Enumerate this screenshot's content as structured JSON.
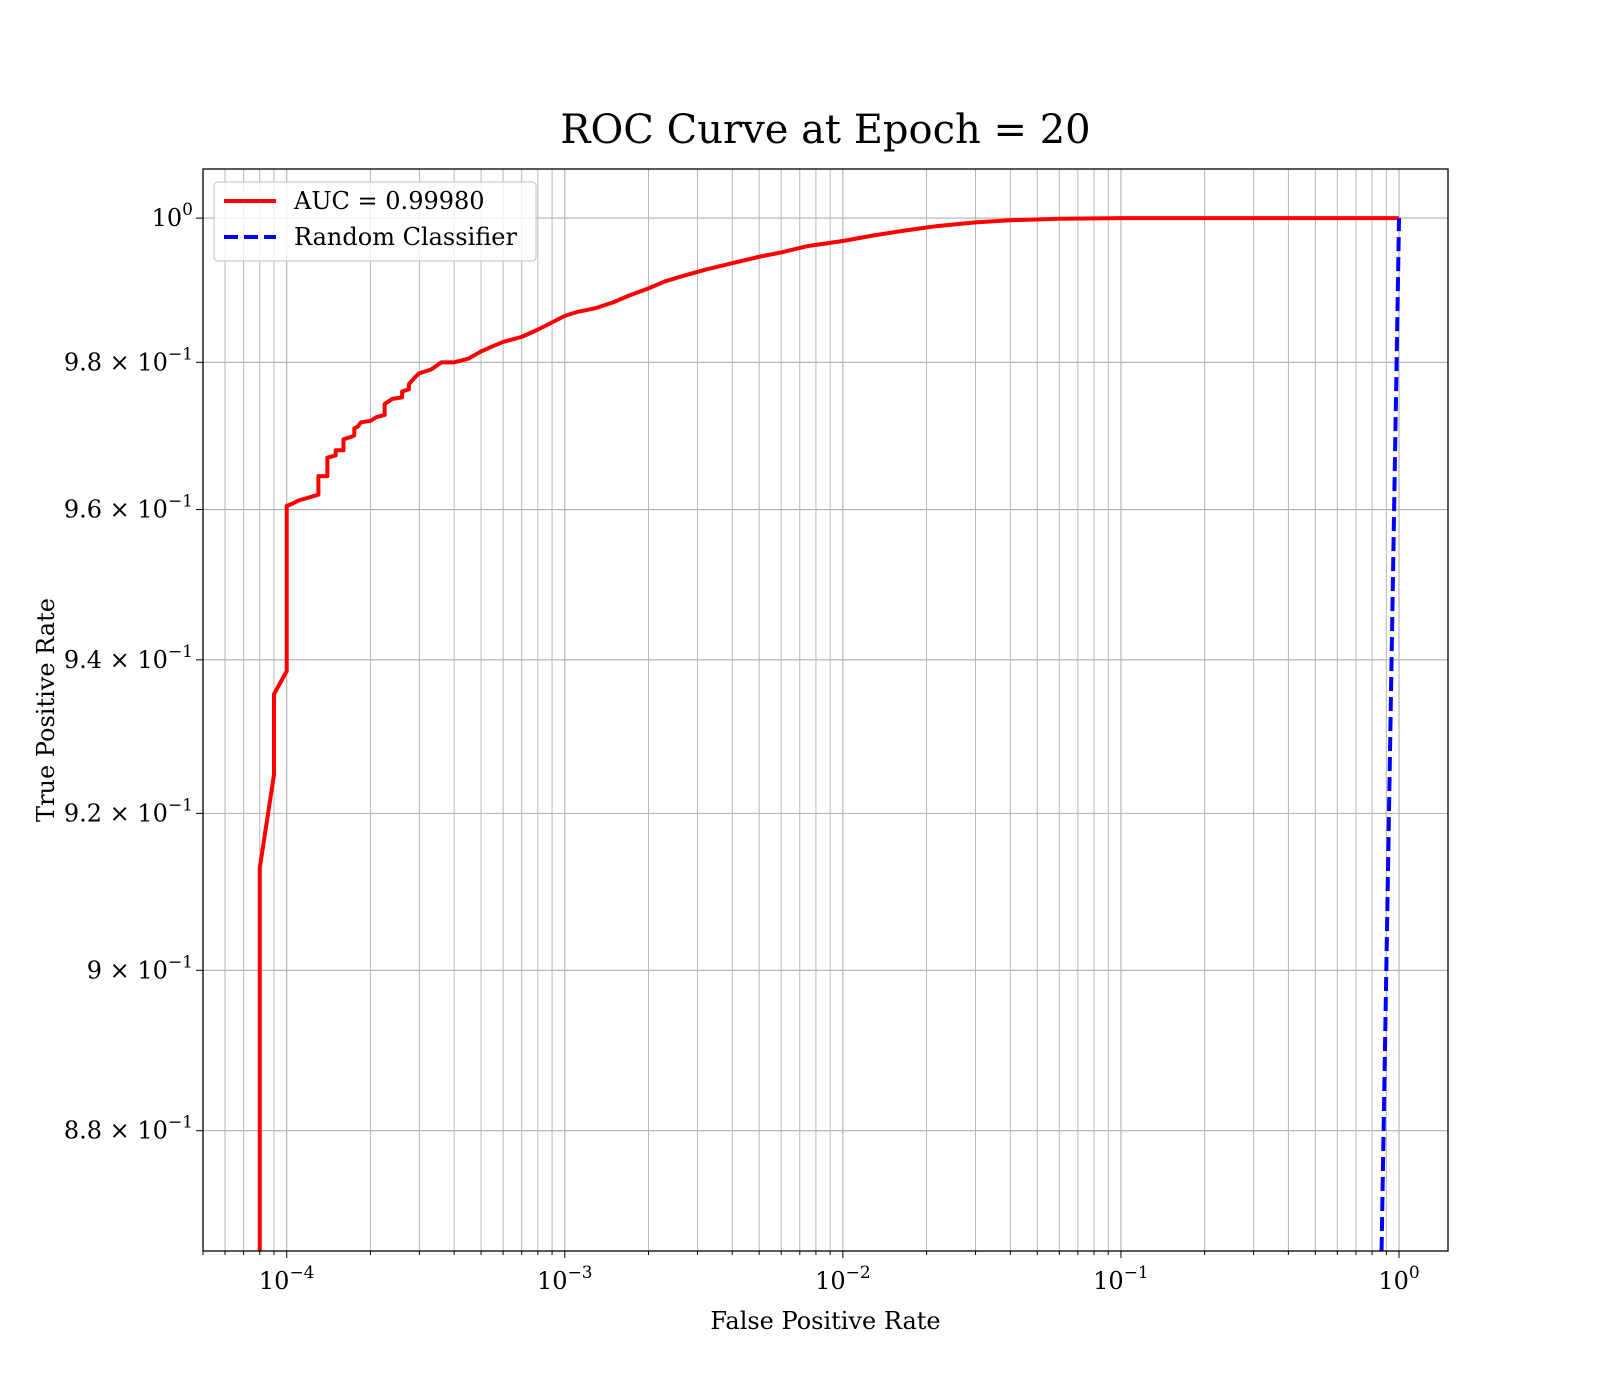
{
  "chart_data": {
    "type": "line",
    "title": "ROC Curve at Epoch = 20",
    "xlabel": "False Positive Rate",
    "ylabel": "True Positive Rate",
    "xscale": "log",
    "yscale": "log",
    "xlim": [
      5e-05,
      1.5
    ],
    "ylim": [
      0.8653,
      1.0069
    ],
    "grid": "both-major-minor",
    "legend_position": "top-left",
    "x_ticks": [
      {
        "value": 0.0001,
        "mantissa": "10",
        "exponent": "−4"
      },
      {
        "value": 0.001,
        "mantissa": "10",
        "exponent": "−3"
      },
      {
        "value": 0.01,
        "mantissa": "10",
        "exponent": "−2"
      },
      {
        "value": 0.1,
        "mantissa": "10",
        "exponent": "−1"
      },
      {
        "value": 1,
        "mantissa": "10",
        "exponent": "0"
      }
    ],
    "y_ticks": [
      {
        "value": 1.0,
        "mantissa": "10",
        "exponent": "0"
      },
      {
        "value": 0.98,
        "mantissa": "9.8 × 10",
        "exponent": "−1"
      },
      {
        "value": 0.96,
        "mantissa": "9.6 × 10",
        "exponent": "−1"
      },
      {
        "value": 0.94,
        "mantissa": "9.4 × 10",
        "exponent": "−1"
      },
      {
        "value": 0.92,
        "mantissa": "9.2 × 10",
        "exponent": "−1"
      },
      {
        "value": 0.9,
        "mantissa": "9 × 10",
        "exponent": "−1"
      },
      {
        "value": 0.88,
        "mantissa": "8.8 × 10",
        "exponent": "−1"
      }
    ],
    "series": [
      {
        "name": "AUC = 0.99980",
        "color": "#ff0000",
        "style": "solid",
        "points": [
          [
            8e-05,
            0.8653
          ],
          [
            8e-05,
            0.913
          ],
          [
            9e-05,
            0.925
          ],
          [
            9e-05,
            0.9355
          ],
          [
            0.0001,
            0.9385
          ],
          [
            0.0001,
            0.9605
          ],
          [
            0.000105,
            0.9608
          ],
          [
            0.00011,
            0.9612
          ],
          [
            0.00013,
            0.962
          ],
          [
            0.00013,
            0.9645
          ],
          [
            0.00014,
            0.9645
          ],
          [
            0.00014,
            0.967
          ],
          [
            0.00015,
            0.9673
          ],
          [
            0.00015,
            0.968
          ],
          [
            0.00016,
            0.968
          ],
          [
            0.00016,
            0.9695
          ],
          [
            0.00017,
            0.9698
          ],
          [
            0.000175,
            0.97
          ],
          [
            0.000175,
            0.971
          ],
          [
            0.00018,
            0.9712
          ],
          [
            0.000185,
            0.9718
          ],
          [
            0.0002,
            0.972
          ],
          [
            0.00021,
            0.9725
          ],
          [
            0.000225,
            0.9728
          ],
          [
            0.000225,
            0.9743
          ],
          [
            0.00024,
            0.975
          ],
          [
            0.00026,
            0.9752
          ],
          [
            0.00026,
            0.976
          ],
          [
            0.000275,
            0.9763
          ],
          [
            0.000275,
            0.977
          ],
          [
            0.00029,
            0.978
          ],
          [
            0.0003,
            0.9785
          ],
          [
            0.00033,
            0.979
          ],
          [
            0.00036,
            0.98
          ],
          [
            0.0004,
            0.98
          ],
          [
            0.00045,
            0.9805
          ],
          [
            0.0005,
            0.9815
          ],
          [
            0.00055,
            0.9822
          ],
          [
            0.0006,
            0.9828
          ],
          [
            0.0007,
            0.9835
          ],
          [
            0.0008,
            0.9845
          ],
          [
            0.0009,
            0.9855
          ],
          [
            0.001,
            0.9864
          ],
          [
            0.0011,
            0.9869
          ],
          [
            0.0013,
            0.9875
          ],
          [
            0.0015,
            0.9883
          ],
          [
            0.0017,
            0.9892
          ],
          [
            0.002,
            0.9902
          ],
          [
            0.0023,
            0.9912
          ],
          [
            0.0027,
            0.992
          ],
          [
            0.0032,
            0.9928
          ],
          [
            0.004,
            0.9937
          ],
          [
            0.005,
            0.9946
          ],
          [
            0.006,
            0.9952
          ],
          [
            0.0075,
            0.9961
          ],
          [
            0.01,
            0.9968
          ],
          [
            0.013,
            0.9976
          ],
          [
            0.017,
            0.9983
          ],
          [
            0.022,
            0.9989
          ],
          [
            0.03,
            0.9994
          ],
          [
            0.04,
            0.9997
          ],
          [
            0.06,
            0.9999
          ],
          [
            0.1,
            1.0
          ],
          [
            0.3,
            1.0
          ],
          [
            1.0,
            1.0
          ]
        ]
      },
      {
        "name": "Random Classifier",
        "color": "#0000ff",
        "style": "dashed",
        "points": [
          [
            0.8653,
            0.8653
          ],
          [
            0.9,
            0.9
          ],
          [
            0.95,
            0.95
          ],
          [
            1.0,
            1.0
          ]
        ]
      }
    ]
  }
}
